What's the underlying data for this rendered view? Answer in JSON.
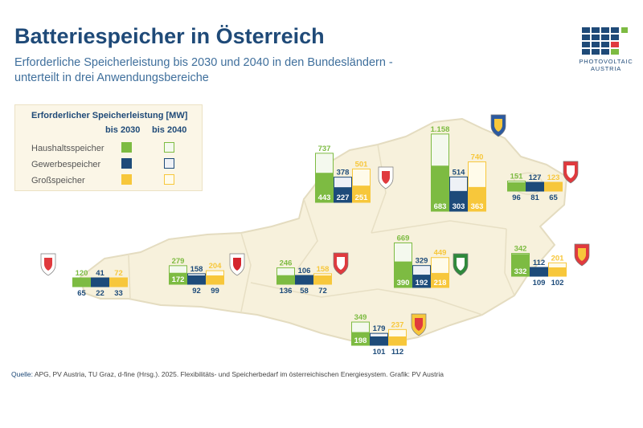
{
  "header": {
    "title": "Batteriespeicher in Österreich",
    "subtitle_line1": "Erforderliche Speicherleistung bis 2030 und 2040 in den Bundesländern -",
    "subtitle_line2": "unterteilt in drei Anwendungsbereiche"
  },
  "logo": {
    "line1": "PHOTOVOLTAIC",
    "line2": "AUSTRIA"
  },
  "legend": {
    "title": "Erforderlicher Speicherleistung [MW]",
    "col_2030": "bis 2030",
    "col_2040": "bis 2040",
    "rows": [
      "Haushaltsspeicher",
      "Gewerbespeicher",
      "Großspeicher"
    ]
  },
  "source": {
    "label": "Quelle:",
    "text": "APG, PV Austria, TU Graz, d-fine (Hrsg.). 2025. Flexibilitäts- und Speicherbedarf im österreichischen Energiesystem. Grafik: PV Austria"
  },
  "colors": {
    "haushalt": "#7dbb42",
    "gewerbe": "#1d4b7a",
    "gross": "#f7c73b",
    "map_fill": "#f7f1dc",
    "map_border": "#e4dcc0",
    "title": "#1f4a78"
  },
  "chart_data": {
    "type": "bar",
    "unit": "MW",
    "series": [
      "Haushaltsspeicher",
      "Gewerbespeicher",
      "Großspeicher"
    ],
    "years": [
      "bis 2030",
      "bis 2040"
    ],
    "regions": [
      {
        "coat": "vorarlberg",
        "v2030": [
          65,
          22,
          33
        ],
        "v2040": [
          120,
          41,
          72
        ]
      },
      {
        "coat": "tirol",
        "v2030": [
          172,
          92,
          99
        ],
        "v2040": [
          279,
          158,
          204
        ]
      },
      {
        "coat": "salzburg",
        "v2030": [
          136,
          58,
          72
        ],
        "v2040": [
          246,
          106,
          158
        ]
      },
      {
        "coat": "oberoesterreich",
        "v2030": [
          443,
          227,
          251
        ],
        "v2040": [
          737,
          378,
          501
        ]
      },
      {
        "coat": "niederoesterreich",
        "v2030": [
          683,
          303,
          363
        ],
        "v2040": [
          1158,
          514,
          740
        ]
      },
      {
        "coat": "wien",
        "v2030": [
          96,
          81,
          65
        ],
        "v2040": [
          151,
          127,
          123
        ]
      },
      {
        "coat": "steiermark",
        "v2030": [
          390,
          192,
          218
        ],
        "v2040": [
          669,
          329,
          449
        ]
      },
      {
        "coat": "burgenland",
        "v2030": [
          332,
          109,
          102
        ],
        "v2040": [
          342,
          112,
          201
        ]
      },
      {
        "coat": "kaernten",
        "v2030": [
          198,
          101,
          112
        ],
        "v2040": [
          349,
          179,
          237
        ]
      }
    ],
    "number_labels": {
      "vorarlberg": [
        "120",
        "41",
        "72",
        "65",
        "22",
        "33"
      ],
      "tirol": [
        "279",
        "158",
        "204",
        "172",
        "92",
        "99"
      ],
      "salzburg": [
        "246",
        "106",
        "158",
        "136",
        "58",
        "72"
      ],
      "oberoesterreich": [
        "737",
        "378",
        "501",
        "443",
        "227",
        "251"
      ],
      "niederoesterreich": [
        "1.158",
        "514",
        "740",
        "683",
        "303",
        "363"
      ],
      "wien": [
        "151",
        "127",
        "123",
        "96",
        "81",
        "65"
      ],
      "steiermark": [
        "669",
        "329",
        "449",
        "390",
        "192",
        "218"
      ],
      "burgenland": [
        "342",
        "112",
        "201",
        "332",
        "109",
        "102"
      ],
      "kaernten": [
        "349",
        "179",
        "237",
        "198",
        "101",
        "112"
      ]
    }
  }
}
